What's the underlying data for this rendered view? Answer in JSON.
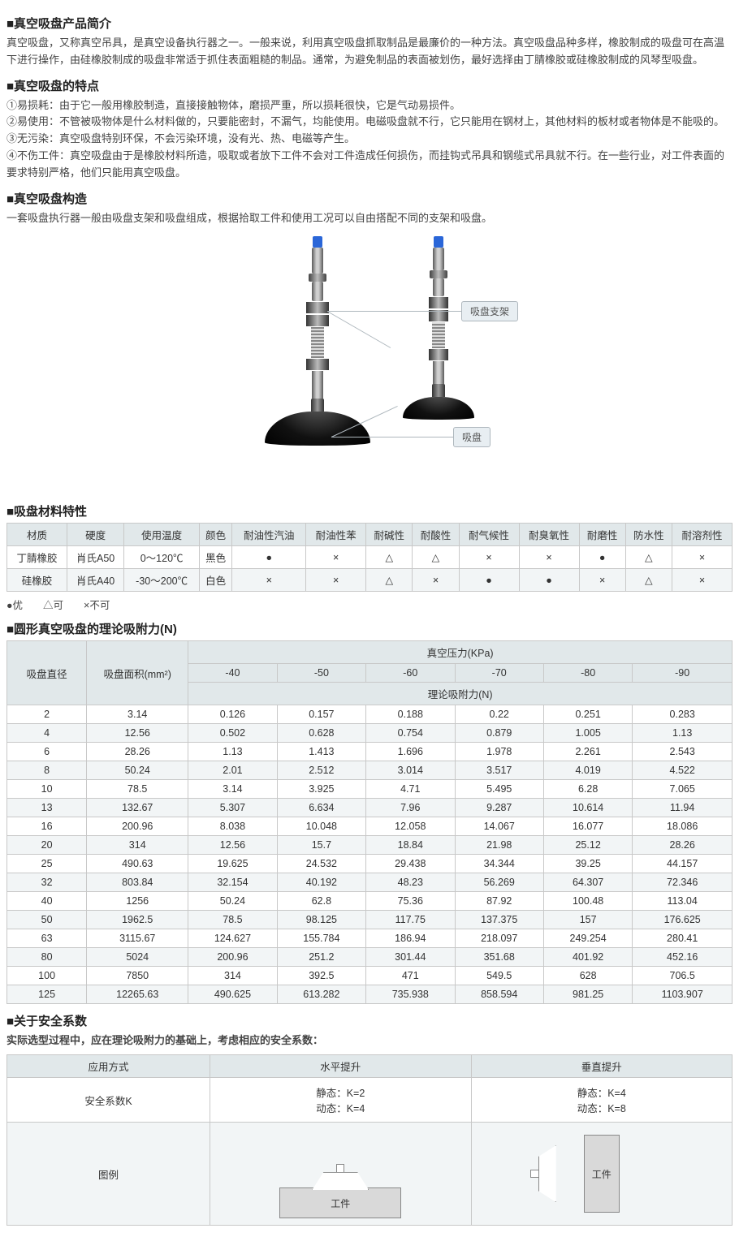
{
  "intro": {
    "heading": "■真空吸盘产品简介",
    "body": "真空吸盘，又称真空吊具，是真空设备执行器之一。一般来说，利用真空吸盘抓取制品是最廉价的一种方法。真空吸盘品种多样，橡胶制成的吸盘可在高温下进行操作，由硅橡胶制成的吸盘非常适于抓住表面粗糙的制品。通常，为避免制品的表面被划伤，最好选择由丁腈橡胶或硅橡胶制成的风琴型吸盘。"
  },
  "features": {
    "heading": "■真空吸盘的特点",
    "items": [
      "①易损耗：由于它一般用橡胶制造，直接接触物体，磨损严重，所以损耗很快，它是气动易损件。",
      "②易使用：不管被吸物体是什么材料做的，只要能密封，不漏气，均能使用。电磁吸盘就不行，它只能用在钢材上，其他材料的板材或者物体是不能吸的。",
      "③无污染：真空吸盘特别环保，不会污染环境，没有光、热、电磁等产生。",
      "④不伤工件：真空吸盘由于是橡胶材料所造，吸取或者放下工件不会对工件造成任何损伤，而挂钩式吊具和钢缆式吊具就不行。在一些行业，对工件表面的要求特别严格，他们只能用真空吸盘。"
    ]
  },
  "structure": {
    "heading": "■真空吸盘构造",
    "body": "一套吸盘执行器一般由吸盘支架和吸盘组成，根据拾取工件和使用工况可以自由搭配不同的支架和吸盘。",
    "callout_bracket": "吸盘支架",
    "callout_cup": "吸盘"
  },
  "material": {
    "heading": "■吸盘材料特性",
    "columns": [
      "材质",
      "硬度",
      "使用温度",
      "颜色",
      "耐油性汽油",
      "耐油性苯",
      "耐碱性",
      "耐酸性",
      "耐气候性",
      "耐臭氧性",
      "耐磨性",
      "防水性",
      "耐溶剂性"
    ],
    "rows": [
      [
        "丁腈橡胶",
        "肖氏A50",
        "0～120℃",
        "黑色",
        "●",
        "×",
        "△",
        "△",
        "×",
        "×",
        "●",
        "△",
        "×"
      ],
      [
        "硅橡胶",
        "肖氏A40",
        "-30～200℃",
        "白色",
        "×",
        "×",
        "△",
        "×",
        "●",
        "●",
        "×",
        "△",
        "×"
      ]
    ],
    "legend": "●优　　△可　　×不可"
  },
  "suction_force": {
    "heading": "■圆形真空吸盘的理论吸附力(N)",
    "header_diameter": "吸盘直径",
    "header_area": "吸盘面积(mm²)",
    "header_pressure": "真空压力(KPa)",
    "header_force": "理论吸附力(N)",
    "pressure_cols": [
      "-40",
      "-50",
      "-60",
      "-70",
      "-80",
      "-90"
    ],
    "rows": [
      [
        "2",
        "3.14",
        "0.126",
        "0.157",
        "0.188",
        "0.22",
        "0.251",
        "0.283"
      ],
      [
        "4",
        "12.56",
        "0.502",
        "0.628",
        "0.754",
        "0.879",
        "1.005",
        "1.13"
      ],
      [
        "6",
        "28.26",
        "1.13",
        "1.413",
        "1.696",
        "1.978",
        "2.261",
        "2.543"
      ],
      [
        "8",
        "50.24",
        "2.01",
        "2.512",
        "3.014",
        "3.517",
        "4.019",
        "4.522"
      ],
      [
        "10",
        "78.5",
        "3.14",
        "3.925",
        "4.71",
        "5.495",
        "6.28",
        "7.065"
      ],
      [
        "13",
        "132.67",
        "5.307",
        "6.634",
        "7.96",
        "9.287",
        "10.614",
        "11.94"
      ],
      [
        "16",
        "200.96",
        "8.038",
        "10.048",
        "12.058",
        "14.067",
        "16.077",
        "18.086"
      ],
      [
        "20",
        "314",
        "12.56",
        "15.7",
        "18.84",
        "21.98",
        "25.12",
        "28.26"
      ],
      [
        "25",
        "490.63",
        "19.625",
        "24.532",
        "29.438",
        "34.344",
        "39.25",
        "44.157"
      ],
      [
        "32",
        "803.84",
        "32.154",
        "40.192",
        "48.23",
        "56.269",
        "64.307",
        "72.346"
      ],
      [
        "40",
        "1256",
        "50.24",
        "62.8",
        "75.36",
        "87.92",
        "100.48",
        "113.04"
      ],
      [
        "50",
        "1962.5",
        "78.5",
        "98.125",
        "117.75",
        "137.375",
        "157",
        "176.625"
      ],
      [
        "63",
        "3115.67",
        "124.627",
        "155.784",
        "186.94",
        "218.097",
        "249.254",
        "280.41"
      ],
      [
        "80",
        "5024",
        "200.96",
        "251.2",
        "301.44",
        "351.68",
        "401.92",
        "452.16"
      ],
      [
        "100",
        "7850",
        "314",
        "392.5",
        "471",
        "549.5",
        "628",
        "706.5"
      ],
      [
        "125",
        "12265.63",
        "490.625",
        "613.282",
        "735.938",
        "858.594",
        "981.25",
        "1103.907"
      ]
    ]
  },
  "safety": {
    "heading": "■关于安全系数",
    "intro": "实际选型过程中，应在理论吸附力的基础上，考虑相应的安全系数：",
    "col_app": "应用方式",
    "col_horiz": "水平提升",
    "col_vert": "垂直提升",
    "row_k_label": "安全系数K",
    "horiz_k": "静态：K=2\n动态：K=4",
    "vert_k": "静态：K=4\n动态：K=8",
    "row_illus_label": "图例",
    "workpiece_label": "工件"
  },
  "colors": {
    "header_bg": "#e1e8ea",
    "border": "#c8c8c8",
    "alt_row": "#f2f5f6"
  }
}
